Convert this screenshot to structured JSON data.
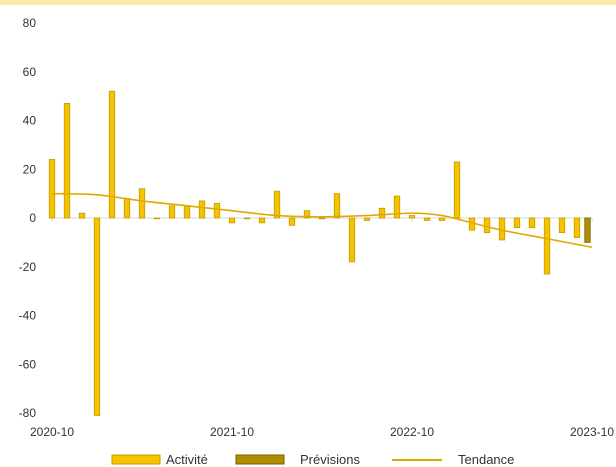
{
  "chart_data": {
    "type": "bar",
    "colors": {
      "activity": "#f5c400",
      "activity_stroke": "#c49a00",
      "forecast": "#b08d00",
      "forecast_stroke": "#7a6100",
      "trend": "#e3a800",
      "axis": "#d9d9d9"
    },
    "ylim": [
      -80,
      80
    ],
    "yticks": [
      80,
      60,
      40,
      20,
      0,
      -20,
      -40,
      -60,
      -80
    ],
    "xlim": [
      0,
      36
    ],
    "xticks": [
      {
        "x": 0,
        "label": "2020-10"
      },
      {
        "x": 12,
        "label": "2021-10"
      },
      {
        "x": 24,
        "label": "2022-10"
      },
      {
        "x": 36,
        "label": "2023-10"
      }
    ],
    "legend": {
      "position": "bottom",
      "activity": "Activité",
      "forecast": "Prévisions",
      "trend": "Tendance"
    },
    "activity": [
      {
        "x": 0,
        "value": 24
      },
      {
        "x": 1,
        "value": 47
      },
      {
        "x": 2,
        "value": 2
      },
      {
        "x": 3,
        "value": -81
      },
      {
        "x": 4,
        "value": 52
      },
      {
        "x": 5,
        "value": 8
      },
      {
        "x": 6,
        "value": 12
      },
      {
        "x": 7,
        "value": 0
      },
      {
        "x": 8,
        "value": 5
      },
      {
        "x": 9,
        "value": 5
      },
      {
        "x": 10,
        "value": 7
      },
      {
        "x": 11,
        "value": 6
      },
      {
        "x": 12,
        "value": -2
      },
      {
        "x": 13,
        "value": 0
      },
      {
        "x": 14,
        "value": -2
      },
      {
        "x": 15,
        "value": 11
      },
      {
        "x": 16,
        "value": -3
      },
      {
        "x": 17,
        "value": 3
      },
      {
        "x": 18,
        "value": 0
      },
      {
        "x": 19,
        "value": 10
      },
      {
        "x": 20,
        "value": -18
      },
      {
        "x": 21,
        "value": -1
      },
      {
        "x": 22,
        "value": 4
      },
      {
        "x": 23,
        "value": 9
      },
      {
        "x": 24,
        "value": 1
      },
      {
        "x": 25,
        "value": -1
      },
      {
        "x": 26,
        "value": -1
      },
      {
        "x": 27,
        "value": 23
      },
      {
        "x": 28,
        "value": -5
      },
      {
        "x": 29,
        "value": -6
      },
      {
        "x": 30,
        "value": -9
      },
      {
        "x": 31,
        "value": -4
      },
      {
        "x": 32,
        "value": -4
      },
      {
        "x": 33,
        "value": -23
      },
      {
        "x": 34,
        "value": -6
      },
      {
        "x": 35,
        "value": -8
      }
    ],
    "forecast": [
      {
        "x": 35.7,
        "value": -10
      }
    ],
    "trend": [
      {
        "x": 0,
        "value": 10
      },
      {
        "x": 3,
        "value": 9.5
      },
      {
        "x": 6,
        "value": 7
      },
      {
        "x": 9,
        "value": 5
      },
      {
        "x": 12,
        "value": 3
      },
      {
        "x": 15,
        "value": 1
      },
      {
        "x": 18,
        "value": 0.5
      },
      {
        "x": 21,
        "value": 1
      },
      {
        "x": 24,
        "value": 2
      },
      {
        "x": 26,
        "value": 1
      },
      {
        "x": 28,
        "value": -2
      },
      {
        "x": 30,
        "value": -5
      },
      {
        "x": 33,
        "value": -8.5
      },
      {
        "x": 36,
        "value": -12
      }
    ]
  }
}
